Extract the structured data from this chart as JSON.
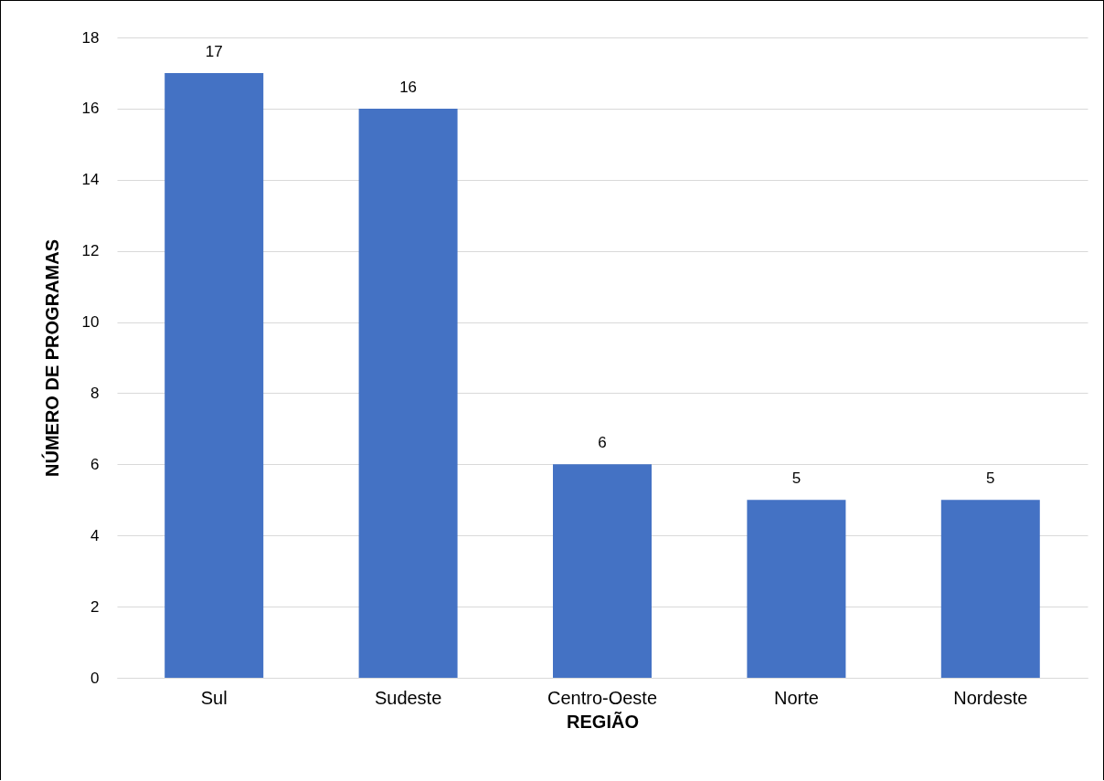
{
  "chart_data": {
    "type": "bar",
    "xlabel": "REGIÃO",
    "ylabel": "NÚMERO DE PROGRAMAS",
    "categories": [
      "Sul",
      "Sudeste",
      "Centro-Oeste",
      "Norte",
      "Nordeste"
    ],
    "values": [
      17,
      16,
      6,
      5,
      5
    ],
    "color": "#4472c4",
    "ylim": [
      0,
      18
    ],
    "yticks": [
      0,
      2,
      4,
      6,
      8,
      10,
      12,
      14,
      16,
      18
    ],
    "grid": "y",
    "data_labels": true
  }
}
